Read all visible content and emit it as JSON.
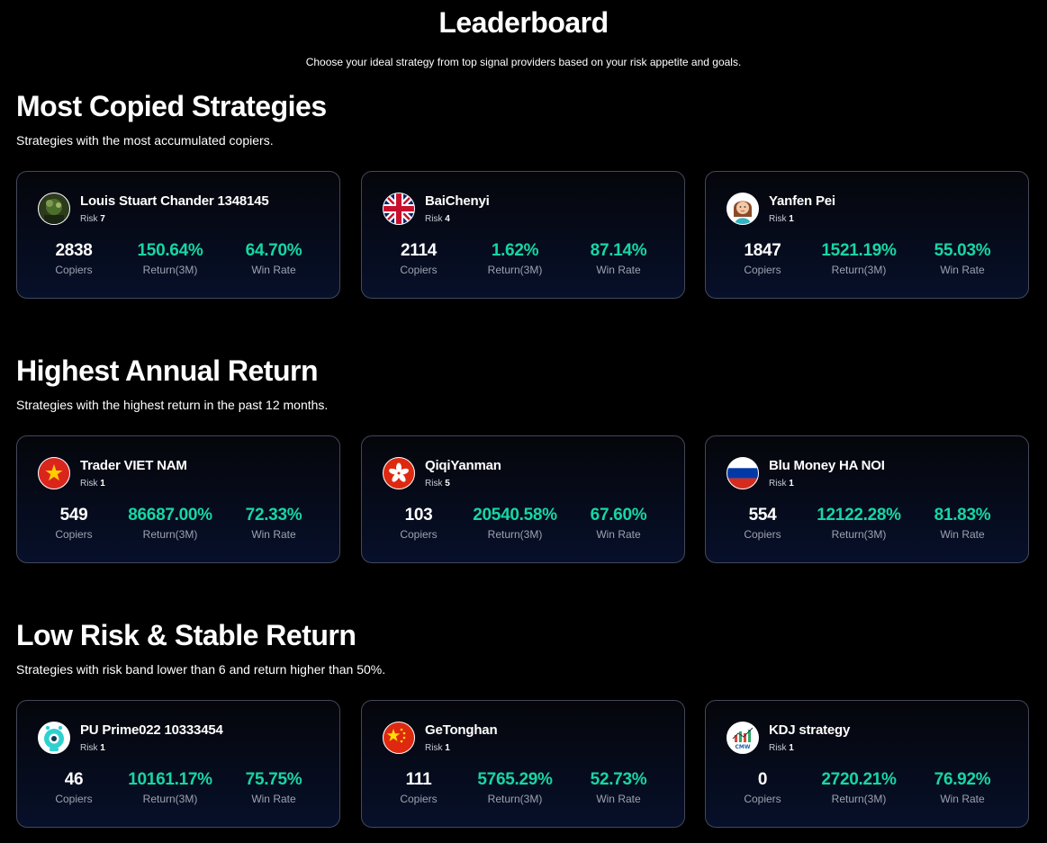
{
  "page": {
    "title": "Leaderboard",
    "subtitle": "Choose your ideal strategy from top signal providers based on your risk appetite and goals."
  },
  "labels": {
    "risk": "Risk",
    "copiers": "Copiers",
    "return": "Return(3M)",
    "win_rate": "Win Rate"
  },
  "colors": {
    "background": "#000000",
    "card_border": "#43485a",
    "positive": "#17d6a3",
    "muted": "#9da2b0"
  },
  "sections": [
    {
      "title": "Most Copied Strategies",
      "description": "Strategies with the most accumulated copiers.",
      "cards": [
        {
          "name": "Louis Stuart Chander 1348145",
          "avatar": "photo-avatar-icon",
          "risk": "7",
          "copiers": "2838",
          "return": "150.64%",
          "win_rate": "64.70%"
        },
        {
          "name": "BaiChenyi",
          "avatar": "uk-flag-icon",
          "risk": "4",
          "copiers": "2114",
          "return": "1.62%",
          "win_rate": "87.14%"
        },
        {
          "name": "Yanfen Pei",
          "avatar": "cartoon-woman-icon",
          "risk": "1",
          "copiers": "1847",
          "return": "1521.19%",
          "win_rate": "55.03%"
        }
      ]
    },
    {
      "title": "Highest Annual Return",
      "description": "Strategies with the highest return in the past 12 months.",
      "cards": [
        {
          "name": "Trader VIET NAM",
          "avatar": "vietnam-flag-icon",
          "risk": "1",
          "copiers": "549",
          "return": "86687.00%",
          "win_rate": "72.33%"
        },
        {
          "name": "QiqiYanman",
          "avatar": "hong-kong-flag-icon",
          "risk": "5",
          "copiers": "103",
          "return": "20540.58%",
          "win_rate": "67.60%"
        },
        {
          "name": "Blu Money HA NOI",
          "avatar": "russia-flag-icon",
          "risk": "1",
          "copiers": "554",
          "return": "12122.28%",
          "win_rate": "81.83%"
        }
      ]
    },
    {
      "title": "Low Risk & Stable Return",
      "description": "Strategies with risk band lower than 6 and return higher than 50%.",
      "cards": [
        {
          "name": "PU Prime022 10333454",
          "avatar": "robot-eye-icon",
          "risk": "1",
          "copiers": "46",
          "return": "10161.17%",
          "win_rate": "75.75%"
        },
        {
          "name": "GeTonghan",
          "avatar": "china-flag-icon",
          "risk": "1",
          "copiers": "111",
          "return": "5765.29%",
          "win_rate": "52.73%"
        },
        {
          "name": "KDJ strategy",
          "avatar": "cmw-trading-logo-icon",
          "avatar_text": "CMW",
          "risk": "1",
          "copiers": "0",
          "return": "2720.21%",
          "win_rate": "76.92%"
        }
      ]
    }
  ]
}
